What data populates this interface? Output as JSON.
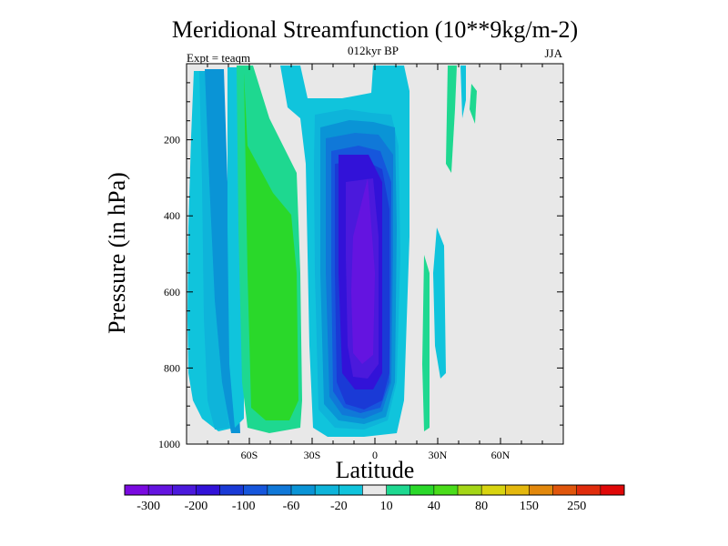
{
  "chart_data": {
    "type": "heatmap",
    "title": "Meridional Streamfunction (10**9kg/m-2)",
    "subtitle_center": "012kyr BP",
    "subtitle_left": "Expt = teaqm",
    "subtitle_right": "JJA",
    "xlabel": "Latitude",
    "ylabel": "Pressure (in hPa)",
    "xlim": [
      -90,
      90
    ],
    "ylim": [
      1000,
      0
    ],
    "x_ticks": [
      {
        "value": -60,
        "label": "60S"
      },
      {
        "value": -30,
        "label": "30S"
      },
      {
        "value": 0,
        "label": "0"
      },
      {
        "value": 30,
        "label": "30N"
      },
      {
        "value": 60,
        "label": "60N"
      }
    ],
    "y_ticks": [
      {
        "value": 200,
        "label": "200"
      },
      {
        "value": 400,
        "label": "400"
      },
      {
        "value": 600,
        "label": "600"
      },
      {
        "value": 800,
        "label": "800"
      },
      {
        "value": 1000,
        "label": "1000"
      }
    ],
    "colorbar": {
      "levels": [
        -300,
        -250,
        -200,
        -150,
        -100,
        -80,
        -60,
        -40,
        -20,
        -10,
        10,
        20,
        40,
        60,
        80,
        100,
        150,
        200,
        250,
        300
      ],
      "labels": [
        "-300",
        "-200",
        "-100",
        "-60",
        "-20",
        "10",
        "40",
        "80",
        "150",
        "250"
      ],
      "colors": [
        "#7a0ae0",
        "#6414e0",
        "#4b19dc",
        "#3212d8",
        "#1a3ad6",
        "#1656dc",
        "#1078d8",
        "#0a94d6",
        "#0eb4da",
        "#10c4dc",
        "#e8e8e8",
        "#1ed890",
        "#2ad82a",
        "#4adc1a",
        "#a4d616",
        "#d8d410",
        "#e4b80e",
        "#e2880c",
        "#e0560c",
        "#e02c0c",
        "#e00808"
      ]
    },
    "cells": [
      {
        "lat": [
          -90,
          -85
        ],
        "p": [
          0,
          1000
        ],
        "value": 0
      },
      {
        "lat": [
          -85,
          -77
        ],
        "p": [
          20,
          910
        ],
        "value": -20
      },
      {
        "lat": [
          -77,
          -71
        ],
        "p": [
          20,
          950
        ],
        "value": -40
      },
      {
        "lat": [
          -71,
          -64
        ],
        "p": [
          20,
          950
        ],
        "value": -20
      },
      {
        "lat": [
          -64,
          -59
        ],
        "p": [
          20,
          980
        ],
        "value": 20
      },
      {
        "lat": [
          -59,
          -35
        ],
        "p": [
          150,
          960
        ],
        "value": 40
      },
      {
        "lat": [
          -35,
          -29
        ],
        "p": [
          20,
          980
        ],
        "value": -10
      },
      {
        "lat": [
          -29,
          10
        ],
        "p": [
          170,
          990
        ],
        "value": -40
      },
      {
        "lat": [
          -19,
          5
        ],
        "p": [
          280,
          950
        ],
        "value": -100
      },
      {
        "lat": [
          -12,
          1
        ],
        "p": [
          480,
          900
        ],
        "value": -200
      },
      {
        "lat": [
          22,
          27
        ],
        "p": [
          450,
          980
        ],
        "value": 10
      },
      {
        "lat": [
          29,
          33
        ],
        "p": [
          500,
          850
        ],
        "value": -10
      },
      {
        "lat": [
          36,
          41
        ],
        "p": [
          20,
          250
        ],
        "value": 10
      }
    ]
  }
}
